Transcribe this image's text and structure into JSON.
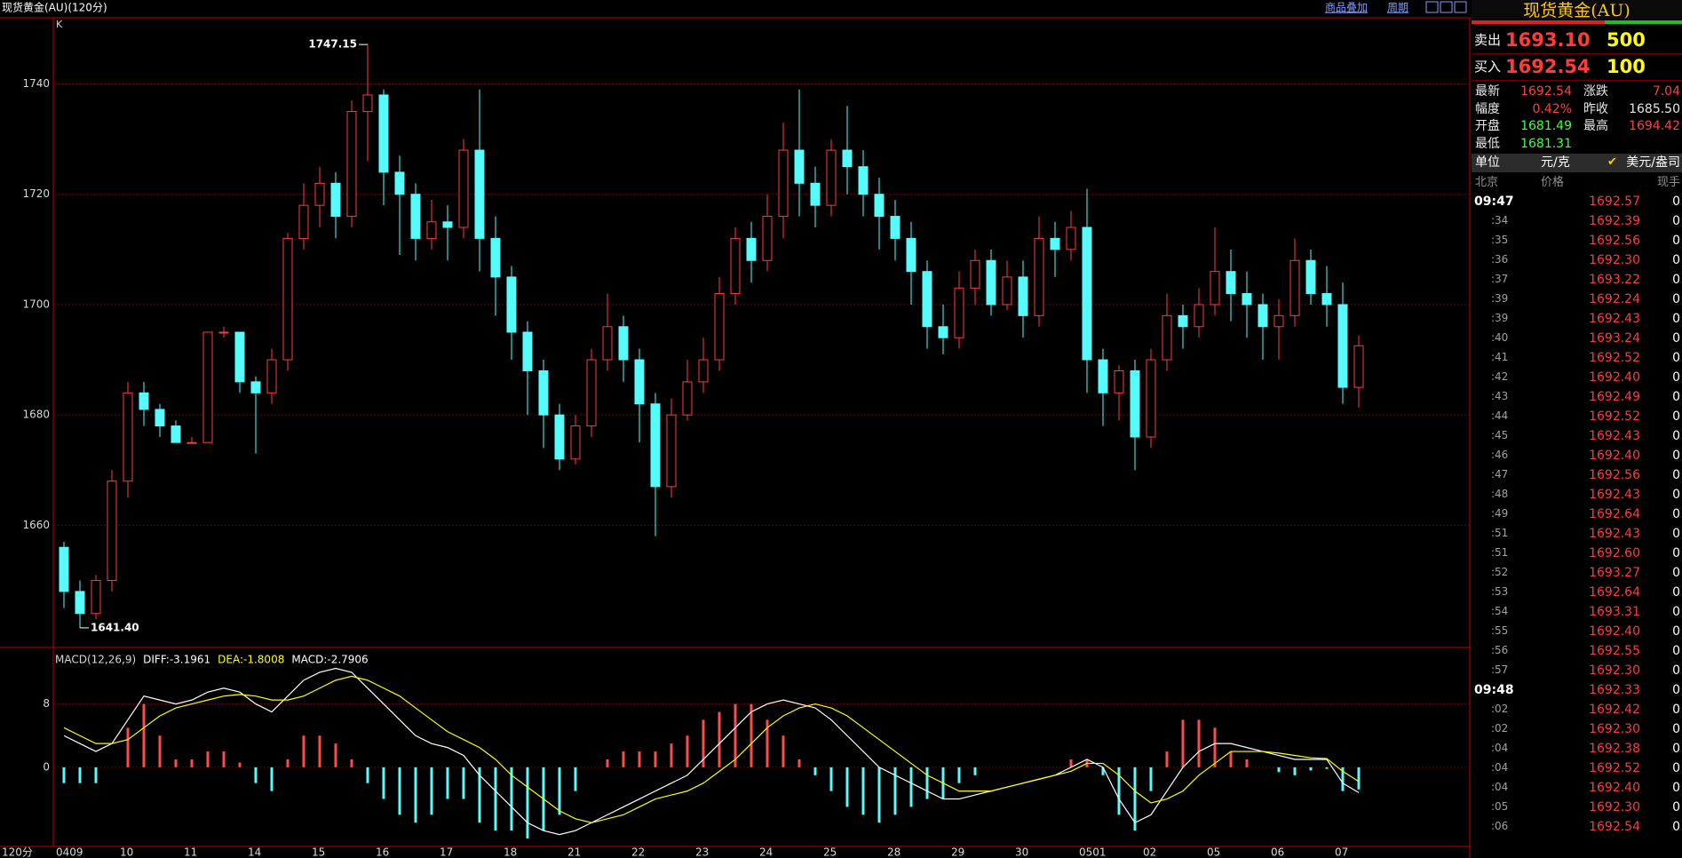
{
  "header": {
    "title": "现货黄金(AU)(120分)",
    "buttons": [
      "商品叠加",
      "周期"
    ]
  },
  "chart_data": [
    {
      "type": "candlestick",
      "panel_label": "K",
      "x_unit_label": "120分",
      "categories": [
        "0409",
        null,
        null,
        null,
        "10",
        null,
        null,
        null,
        "11",
        null,
        null,
        null,
        "14",
        null,
        null,
        null,
        "15",
        null,
        null,
        null,
        "16",
        null,
        null,
        null,
        "17",
        null,
        null,
        null,
        "18",
        null,
        null,
        null,
        "21",
        null,
        null,
        null,
        "22",
        null,
        null,
        null,
        "23",
        null,
        null,
        null,
        "24",
        null,
        null,
        null,
        "25",
        null,
        null,
        null,
        "28",
        null,
        null,
        null,
        "29",
        null,
        null,
        null,
        "30",
        null,
        null,
        null,
        "0501",
        null,
        null,
        null,
        "02",
        null,
        null,
        null,
        "05",
        null,
        null,
        null,
        "06",
        null,
        null,
        null,
        "07",
        null
      ],
      "open": [
        1656,
        1648,
        1644,
        1650,
        1668,
        1684,
        1681,
        1678,
        1675,
        1675,
        1695,
        1695,
        1686,
        1684,
        1690,
        1712,
        1718,
        1722,
        1716,
        1735,
        1738,
        1724,
        1720,
        1712,
        1715,
        1714,
        1728,
        1712,
        1705,
        1695,
        1688,
        1680,
        1672,
        1678,
        1690,
        1696,
        1690,
        1682,
        1667,
        1680,
        1686,
        1690,
        1702,
        1712,
        1708,
        1716,
        1728,
        1722,
        1718,
        1728,
        1725,
        1720,
        1716,
        1712,
        1706,
        1696,
        1694,
        1703,
        1708,
        1700,
        1705,
        1698,
        1712,
        1710,
        1714,
        1690,
        1684,
        1688,
        1676,
        1690,
        1698,
        1696,
        1700,
        1706,
        1702,
        1700,
        1696,
        1698,
        1708,
        1702,
        1700,
        1685
      ],
      "high": [
        1657,
        1650,
        1651,
        1670,
        1686,
        1686,
        1682,
        1679,
        1676,
        1695,
        1696,
        1695,
        1687,
        1692,
        1713,
        1722,
        1725,
        1724,
        1737,
        1747.15,
        1739,
        1727,
        1722,
        1719,
        1718,
        1730,
        1739,
        1716,
        1707,
        1697,
        1690,
        1682,
        1680,
        1692,
        1702,
        1698,
        1692,
        1684,
        1683,
        1690,
        1694,
        1705,
        1714,
        1715,
        1720,
        1733,
        1739,
        1725,
        1730,
        1736,
        1728,
        1723,
        1719,
        1715,
        1708,
        1700,
        1706,
        1710,
        1710,
        1708,
        1708,
        1716,
        1715,
        1717,
        1721,
        1692,
        1689,
        1690,
        1692,
        1702,
        1700,
        1703,
        1714,
        1710,
        1706,
        1702,
        1701,
        1712,
        1710,
        1707,
        1704,
        1694.42
      ],
      "low": [
        1645,
        1641.4,
        1643,
        1648,
        1665,
        1678,
        1676,
        1675,
        1675,
        1675,
        1694,
        1684,
        1673,
        1682,
        1688,
        1710,
        1714,
        1712,
        1714,
        1726,
        1718,
        1709,
        1708,
        1710,
        1708,
        1712,
        1706,
        1698,
        1690,
        1680,
        1674,
        1670,
        1671,
        1676,
        1688,
        1686,
        1675,
        1658,
        1665,
        1679,
        1684,
        1688,
        1700,
        1704,
        1706,
        1712,
        1716,
        1714,
        1716,
        1720,
        1716,
        1710,
        1708,
        1700,
        1692,
        1691,
        1692,
        1700,
        1698,
        1699,
        1694,
        1696,
        1705,
        1708,
        1684,
        1678,
        1679,
        1670,
        1674,
        1688,
        1692,
        1694,
        1698,
        1697,
        1694,
        1690,
        1690,
        1696,
        1700,
        1696,
        1682,
        1681.31
      ],
      "close": [
        1648,
        1644,
        1650,
        1668,
        1684,
        1681,
        1678,
        1675,
        1675,
        1695,
        1695,
        1686,
        1684,
        1690,
        1712,
        1718,
        1722,
        1716,
        1735,
        1738,
        1724,
        1720,
        1712,
        1715,
        1714,
        1728,
        1712,
        1705,
        1695,
        1688,
        1680,
        1672,
        1678,
        1690,
        1696,
        1690,
        1682,
        1667,
        1680,
        1686,
        1690,
        1702,
        1712,
        1708,
        1716,
        1728,
        1722,
        1718,
        1728,
        1725,
        1720,
        1716,
        1712,
        1706,
        1696,
        1694,
        1703,
        1708,
        1700,
        1705,
        1698,
        1712,
        1710,
        1714,
        1690,
        1684,
        1688,
        1676,
        1690,
        1698,
        1696,
        1700,
        1706,
        1702,
        1700,
        1696,
        1698,
        1708,
        1702,
        1700,
        1685,
        1692.54
      ],
      "up_color": "#ff3c3c",
      "down_color": "#54fcfc",
      "annotations": [
        "1747.15",
        "1641.40"
      ],
      "ylim": [
        1638,
        1752
      ],
      "yticks": [
        1660,
        1680,
        1700,
        1720,
        1740
      ],
      "grid": true
    },
    {
      "type": "macd",
      "title": "MACD(12,26,9)",
      "series": [
        {
          "name": "DIFF:-3.1961",
          "color": "#ffffff",
          "values": [
            4,
            3,
            2,
            3,
            6,
            9,
            8.5,
            8,
            8.5,
            9.5,
            10,
            9.5,
            8,
            7,
            9,
            11,
            12,
            12.5,
            12,
            10,
            8,
            6,
            4,
            3,
            2.5,
            1.5,
            -1,
            -3,
            -5,
            -7,
            -8,
            -8.5,
            -8,
            -7,
            -6,
            -5,
            -4,
            -3,
            -2,
            -1,
            1,
            3,
            5,
            7,
            8,
            8.5,
            8,
            7.5,
            6,
            4,
            2,
            0,
            -1,
            -2,
            -3,
            -4,
            -4,
            -3.5,
            -3,
            -2.5,
            -2,
            -1.5,
            -1,
            0,
            1,
            0,
            -4,
            -7,
            -6,
            -3,
            0,
            2,
            3,
            3,
            2.5,
            2,
            1.5,
            1,
            1,
            1,
            -2,
            -3.1961
          ]
        },
        {
          "name": "DEA:-1.8008",
          "color": "#ffff00",
          "values": [
            5,
            4,
            3,
            3,
            3.5,
            5,
            6.5,
            7.5,
            8,
            8.5,
            9,
            9.2,
            9,
            8.5,
            8.5,
            9,
            10,
            11,
            11.5,
            11,
            10,
            9,
            7.5,
            6,
            4.5,
            3.5,
            2.5,
            1,
            -1,
            -2.5,
            -4,
            -5.5,
            -6.5,
            -7,
            -6.5,
            -6,
            -5,
            -4,
            -3.5,
            -3,
            -2,
            -0.5,
            1,
            3,
            5,
            6.5,
            7.5,
            8,
            7.5,
            6.5,
            5,
            3.5,
            2,
            0.5,
            -1,
            -2,
            -3,
            -3,
            -3,
            -2.5,
            -2,
            -1.5,
            -1,
            -0.5,
            0.5,
            0.5,
            -1,
            -3,
            -4.5,
            -4,
            -3,
            -1,
            0.5,
            2,
            2,
            2,
            1.8,
            1.5,
            1.2,
            1.1,
            -0.5,
            -1.8008
          ]
        },
        {
          "name": "MACD:-2.7906",
          "color": "#ffffff",
          "kind": "histogram",
          "up_color": "#ff4a4a",
          "down_color": "#54fcfc",
          "values": [
            -2,
            -2,
            -2,
            0,
            5,
            8,
            4,
            1,
            1,
            2,
            2,
            0.6,
            -2,
            -3,
            1,
            4,
            4,
            3,
            1,
            -2,
            -4,
            -6,
            -7,
            -6,
            -4,
            -4,
            -7,
            -8,
            -8,
            -9,
            -8,
            -6,
            -3,
            0,
            1,
            2,
            2,
            2,
            3,
            4,
            6,
            7,
            8,
            8,
            6,
            4,
            1,
            -1,
            -3,
            -5,
            -6,
            -7,
            -6,
            -5,
            -4,
            -4,
            -2,
            -1,
            0,
            0,
            0,
            0,
            0,
            1,
            1,
            -1,
            -6,
            -8,
            -3,
            2,
            6,
            6,
            5,
            2,
            1,
            0,
            -0.6,
            -1,
            -0.4,
            -0.2,
            -3,
            -2.7906
          ]
        }
      ],
      "ylim": [
        -10,
        14.8
      ],
      "yticks": [
        0,
        8
      ],
      "grid": true
    }
  ],
  "quote": {
    "title": "现货黄金(AU)",
    "ask": {
      "label": "卖出",
      "price": "1693.10",
      "volume": "500"
    },
    "bid": {
      "label": "买入",
      "price": "1692.54",
      "volume": "100"
    },
    "stats": [
      {
        "label": "最新",
        "value": "1692.54",
        "color": "#ff4040"
      },
      {
        "label": "涨跌",
        "value": "7.04",
        "color": "#ff4040"
      },
      {
        "label": "幅度",
        "value": "0.42%",
        "color": "#ff4040"
      },
      {
        "label": "昨收",
        "value": "1685.50",
        "color": "#e8e8e8"
      },
      {
        "label": "开盘",
        "value": "1681.49",
        "color": "#40ff40"
      },
      {
        "label": "最高",
        "value": "1694.42",
        "color": "#ff4040"
      },
      {
        "label": "最低",
        "value": "1681.31",
        "color": "#40ff40"
      }
    ],
    "unit": {
      "label": "单位",
      "value": "元/克",
      "mark": "✔",
      "option": "美元/盎司"
    },
    "columns": [
      "北京",
      "价格",
      "现手"
    ],
    "rows": [
      [
        "09:47",
        "1692.57",
        "0"
      ],
      [
        ":34",
        "1692.39",
        "0"
      ],
      [
        ":35",
        "1692.56",
        "0"
      ],
      [
        ":36",
        "1692.30",
        "0"
      ],
      [
        ":37",
        "1693.22",
        "0"
      ],
      [
        ":39",
        "1692.24",
        "0"
      ],
      [
        ":39",
        "1692.43",
        "0"
      ],
      [
        ":40",
        "1693.24",
        "0"
      ],
      [
        ":41",
        "1692.52",
        "0"
      ],
      [
        ":42",
        "1692.40",
        "0"
      ],
      [
        ":43",
        "1692.49",
        "0"
      ],
      [
        ":44",
        "1692.52",
        "0"
      ],
      [
        ":45",
        "1692.43",
        "0"
      ],
      [
        ":46",
        "1692.40",
        "0"
      ],
      [
        ":47",
        "1692.56",
        "0"
      ],
      [
        ":48",
        "1692.43",
        "0"
      ],
      [
        ":49",
        "1692.64",
        "0"
      ],
      [
        ":51",
        "1692.43",
        "0"
      ],
      [
        ":51",
        "1692.60",
        "0"
      ],
      [
        ":52",
        "1693.27",
        "0"
      ],
      [
        ":53",
        "1692.64",
        "0"
      ],
      [
        ":54",
        "1693.31",
        "0"
      ],
      [
        ":55",
        "1692.40",
        "0"
      ],
      [
        ":56",
        "1692.55",
        "0"
      ],
      [
        ":57",
        "1692.30",
        "0"
      ],
      [
        "09:48",
        "1692.33",
        "0"
      ],
      [
        ":02",
        "1692.42",
        "0"
      ],
      [
        ":02",
        "1692.30",
        "0"
      ],
      [
        ":04",
        "1692.38",
        "0"
      ],
      [
        ":04",
        "1692.52",
        "0"
      ],
      [
        ":04",
        "1692.40",
        "0"
      ],
      [
        ":05",
        "1692.30",
        "0"
      ],
      [
        ":06",
        "1692.54",
        "0"
      ]
    ]
  }
}
